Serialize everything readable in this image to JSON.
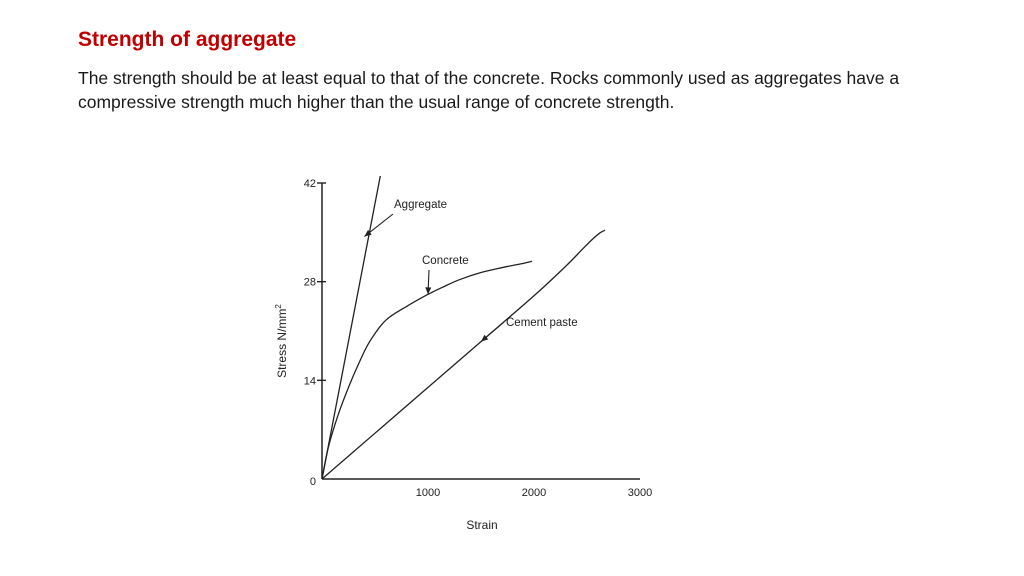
{
  "slide": {
    "title": "Strength of aggregate",
    "body": "The strength should be at least equal to that of the concrete. Rocks commonly used as aggregates have a compressive strength much higher than the usual range of concrete strength."
  },
  "chart_data": {
    "type": "line",
    "xlabel": "Strain",
    "ylabel": "Stress N/mm",
    "ylabel_superscript": "2",
    "xlim": [
      0,
      3000
    ],
    "ylim": [
      0,
      42
    ],
    "xticks": [
      1000,
      2000,
      3000
    ],
    "yticks": [
      42,
      28,
      14
    ],
    "origin_label": "0",
    "grid": false,
    "series": [
      {
        "name": "Aggregate",
        "x": [
          0,
          550
        ],
        "y": [
          0,
          43
        ]
      },
      {
        "name": "Concrete",
        "x": [
          0,
          60,
          150,
          250,
          350,
          450,
          600,
          800,
          1000,
          1150,
          1300,
          1500,
          1700,
          1900,
          1980
        ],
        "y": [
          0,
          4.5,
          9,
          13,
          16.5,
          19.5,
          22.5,
          24.5,
          26.2,
          27.3,
          28.3,
          29.3,
          30,
          30.6,
          30.9
        ]
      },
      {
        "name": "Cement paste",
        "x": [
          0,
          500,
          1000,
          1500,
          2000,
          2300,
          2450,
          2550,
          2620,
          2670
        ],
        "y": [
          0,
          6.5,
          13,
          19.5,
          26,
          30.2,
          32.5,
          34,
          34.9,
          35.3
        ]
      }
    ],
    "annotations": [
      {
        "label": "Aggregate",
        "arrow_x": 400,
        "arrow_y": 34.4
      },
      {
        "label": "Concrete",
        "arrow_x": 1000,
        "arrow_y": 26.2
      },
      {
        "label": "Cement paste",
        "arrow_x": 1500,
        "arrow_y": 19.5
      }
    ]
  }
}
